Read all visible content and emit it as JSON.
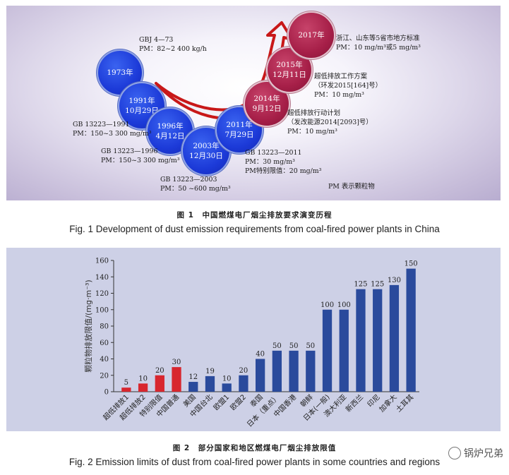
{
  "figure1": {
    "bubbles": [
      {
        "id": "1973",
        "lines": [
          "1973年"
        ],
        "color": "blue"
      },
      {
        "id": "1991",
        "lines": [
          "1991年",
          "10月29日"
        ],
        "color": "blue"
      },
      {
        "id": "1996",
        "lines": [
          "1996年",
          "4月12日"
        ],
        "color": "blue"
      },
      {
        "id": "2003",
        "lines": [
          "2003年",
          "12月30日"
        ],
        "color": "blue"
      },
      {
        "id": "2011",
        "lines": [
          "2011年",
          "7月29日"
        ],
        "color": "blue"
      },
      {
        "id": "2014",
        "lines": [
          "2014年",
          "9月12日"
        ],
        "color": "red"
      },
      {
        "id": "2015",
        "lines": [
          "2015年",
          "12月11日"
        ],
        "color": "red"
      },
      {
        "id": "2017",
        "lines": [
          "2017年"
        ],
        "color": "red"
      }
    ],
    "annotations": {
      "gbj": [
        "GBJ 4—73",
        "PM：82~2 400 kg/h"
      ],
      "gb1991": [
        "GB 13223—1991",
        "PM：150~3 300 mg/m³"
      ],
      "gb1996": [
        "GB 13223—1996",
        "PM：150~3 300 mg/m³"
      ],
      "gb2003": [
        "GB 13223—2003",
        "PM：50 ~600 mg/m³"
      ],
      "gb2011": [
        "GB 13223—2011",
        "PM：30 mg/m³",
        "PM特别限值：20 mg/m³"
      ],
      "a2014": [
        "超低排放行动计划",
        "（发改能源2014[2093]号）",
        "PM：10 mg/m³"
      ],
      "a2015": [
        "超低排放工作方案",
        "（环发2015[164]号）",
        "PM：10 mg/m³"
      ],
      "a2017": [
        "浙江、山东等5省市地方标准",
        "PM：10 mg/m³或5 mg/m³"
      ],
      "pm_note": "PM 表示颗粒物"
    },
    "caption_zh": "图 1　中国燃煤电厂烟尘排放要求演变历程",
    "caption_en": "Fig. 1    Development of dust emission requirements from coal-fired power plants in China"
  },
  "chart_data": {
    "type": "bar",
    "ylabel": "颗粒物排放限值/(mg·m⁻³)",
    "ylim": [
      0,
      160
    ],
    "yticks": [
      0,
      20,
      40,
      60,
      80,
      100,
      120,
      140,
      160
    ],
    "grid": false,
    "categories": [
      "超低排放1",
      "超低排放2",
      "特别限值",
      "中国普通",
      "美国",
      "中国台北",
      "欧盟1",
      "欧盟2",
      "泰国",
      "日本（重点）",
      "中国香港",
      "朝鲜",
      "日本(一般)",
      "澳大利亚",
      "新西兰",
      "印尼",
      "加拿大",
      "土耳其"
    ],
    "values": [
      5,
      10,
      20,
      30,
      12,
      19,
      10,
      20,
      40,
      50,
      50,
      50,
      100,
      100,
      125,
      125,
      130,
      150
    ],
    "colors": [
      "#d8262e",
      "#d8262e",
      "#d8262e",
      "#d8262e",
      "#2a4a9c",
      "#2a4a9c",
      "#2a4a9c",
      "#2a4a9c",
      "#2a4a9c",
      "#2a4a9c",
      "#2a4a9c",
      "#2a4a9c",
      "#2a4a9c",
      "#2a4a9c",
      "#2a4a9c",
      "#2a4a9c",
      "#2a4a9c",
      "#2a4a9c"
    ]
  },
  "figure2": {
    "caption_zh": "图 2　部分国家和地区燃煤电厂烟尘排放限值",
    "caption_en": "Fig. 2    Emission limits of dust from coal-fired power plants in some countries and regions"
  },
  "watermark": {
    "text": "锅炉兄弟"
  }
}
